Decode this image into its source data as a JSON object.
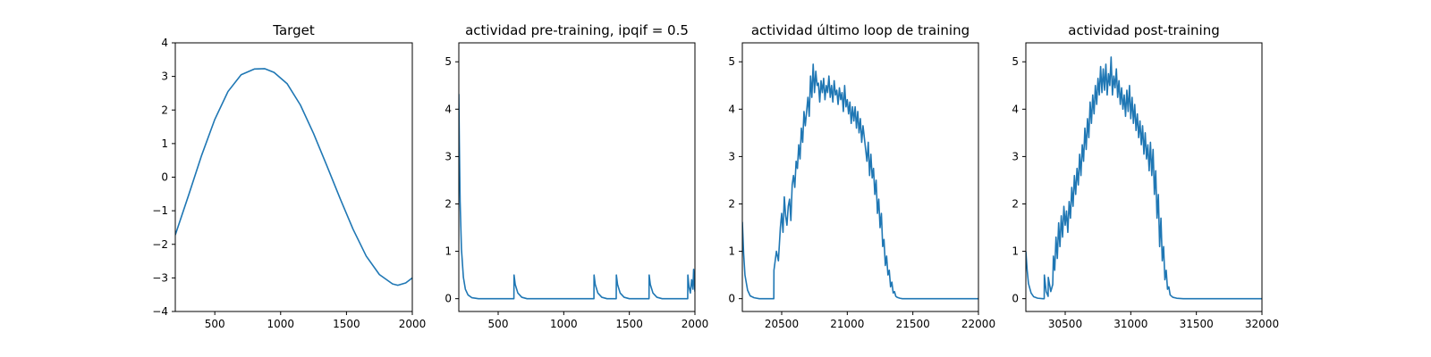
{
  "colors": {
    "series": "#1f77b4",
    "axes": "#000000",
    "background": "#ffffff"
  },
  "chart_data": [
    {
      "type": "line",
      "title": "Target",
      "xlabel": "",
      "ylabel": "",
      "xlim": [
        200,
        2000
      ],
      "ylim": [
        -4,
        4
      ],
      "xticks": [
        500,
        1000,
        1500,
        2000
      ],
      "yticks": [
        -4,
        -3,
        -2,
        -1,
        0,
        1,
        2,
        3,
        4
      ],
      "xtick_labels": [
        "500",
        "1000",
        "1500",
        "2000"
      ],
      "ytick_labels": [
        "−4",
        "−3",
        "−2",
        "−1",
        "0",
        "1",
        "2",
        "3",
        "4"
      ],
      "grid": false,
      "series": [
        {
          "x": [
            200,
            300,
            400,
            500,
            600,
            700,
            800,
            880,
            950,
            1050,
            1150,
            1250,
            1350,
            1450,
            1550,
            1650,
            1750,
            1850,
            1890,
            1950,
            2000
          ],
          "y": [
            -1.72,
            -0.55,
            0.65,
            1.72,
            2.55,
            3.05,
            3.22,
            3.23,
            3.12,
            2.78,
            2.15,
            1.3,
            0.35,
            -0.62,
            -1.55,
            -2.35,
            -2.9,
            -3.18,
            -3.22,
            -3.15,
            -3.0
          ]
        }
      ]
    },
    {
      "type": "line",
      "title": "actividad pre-training, ipqif = 0.5",
      "xlabel": "",
      "ylabel": "",
      "xlim": [
        200,
        2000
      ],
      "ylim": [
        -0.27,
        5.4
      ],
      "xticks": [
        500,
        1000,
        1500,
        2000
      ],
      "yticks": [
        0,
        1,
        2,
        3,
        4,
        5
      ],
      "xtick_labels": [
        "500",
        "1000",
        "1500",
        "2000"
      ],
      "ytick_labels": [
        "0",
        "1",
        "2",
        "3",
        "4",
        "5"
      ],
      "grid": false,
      "series": [
        {
          "x": [
            200,
            204,
            210,
            220,
            235,
            250,
            270,
            300,
            350,
            620,
            621,
            630,
            650,
            680,
            720,
            1230,
            1231,
            1240,
            1260,
            1290,
            1330,
            1400,
            1401,
            1410,
            1430,
            1460,
            1500,
            1650,
            1651,
            1660,
            1680,
            1710,
            1750,
            1945,
            1946,
            1955,
            1965,
            1975,
            1985,
            1990,
            2000
          ],
          "y": [
            4.32,
            3.3,
            2.05,
            1.05,
            0.45,
            0.2,
            0.08,
            0.02,
            0.0,
            0.0,
            0.5,
            0.3,
            0.12,
            0.03,
            0.0,
            0.0,
            0.5,
            0.3,
            0.12,
            0.03,
            0.0,
            0.0,
            0.5,
            0.3,
            0.12,
            0.03,
            0.0,
            0.0,
            0.5,
            0.3,
            0.12,
            0.03,
            0.0,
            0.0,
            0.5,
            0.25,
            0.12,
            0.4,
            0.2,
            0.62,
            0.15
          ]
        }
      ]
    },
    {
      "type": "line",
      "title": "actividad último loop de training",
      "xlabel": "",
      "ylabel": "",
      "xlim": [
        20200,
        22000
      ],
      "ylim": [
        -0.27,
        5.4
      ],
      "xticks": [
        20500,
        21000,
        21500,
        22000
      ],
      "yticks": [
        0,
        1,
        2,
        3,
        4,
        5
      ],
      "xtick_labels": [
        "20500",
        "21000",
        "21500",
        "22000"
      ],
      "ytick_labels": [
        "0",
        "1",
        "2",
        "3",
        "4",
        "5"
      ],
      "grid": false,
      "series": [
        {
          "x": [
            20200,
            20210,
            20220,
            20240,
            20260,
            20290,
            20330,
            20400,
            20440,
            20441,
            20460,
            20475,
            20490,
            20500,
            20510,
            20520,
            20530,
            20540,
            20550,
            20560,
            20570,
            20580,
            20590,
            20600,
            20610,
            20620,
            20630,
            20640,
            20650,
            20660,
            20670,
            20680,
            20690,
            20700,
            20710,
            20720,
            20730,
            20740,
            20750,
            20760,
            20770,
            20780,
            20790,
            20800,
            20810,
            20820,
            20830,
            20840,
            20850,
            20860,
            20870,
            20880,
            20890,
            20900,
            20910,
            20920,
            20930,
            20940,
            20950,
            20960,
            20970,
            20980,
            20990,
            21000,
            21010,
            21020,
            21030,
            21040,
            21050,
            21060,
            21070,
            21080,
            21090,
            21100,
            21110,
            21120,
            21130,
            21140,
            21150,
            21160,
            21170,
            21180,
            21190,
            21200,
            21210,
            21220,
            21230,
            21240,
            21250,
            21260,
            21270,
            21280,
            21290,
            21300,
            21310,
            21320,
            21330,
            21340,
            21350,
            21360,
            21370,
            21380,
            21400,
            21420,
            21450,
            21500,
            21600,
            22000
          ],
          "y": [
            1.62,
            0.95,
            0.5,
            0.18,
            0.06,
            0.02,
            0.0,
            0.0,
            0.0,
            0.6,
            1.0,
            0.8,
            1.5,
            1.8,
            1.4,
            2.15,
            1.75,
            1.55,
            1.95,
            2.1,
            1.65,
            2.4,
            2.6,
            2.35,
            2.9,
            2.75,
            3.25,
            2.95,
            3.6,
            3.3,
            3.95,
            3.65,
            3.95,
            4.25,
            3.85,
            4.7,
            4.25,
            4.95,
            4.35,
            4.8,
            4.5,
            4.55,
            4.15,
            4.6,
            4.35,
            4.65,
            4.2,
            4.5,
            4.35,
            4.7,
            4.25,
            4.5,
            4.15,
            4.6,
            4.3,
            4.4,
            4.1,
            4.45,
            4.2,
            4.35,
            3.95,
            4.5,
            4.05,
            4.2,
            3.9,
            4.15,
            3.7,
            4.05,
            3.75,
            4.05,
            3.6,
            3.95,
            3.5,
            3.8,
            3.3,
            3.65,
            3.4,
            3.15,
            2.9,
            3.3,
            2.6,
            3.05,
            2.55,
            2.75,
            2.2,
            2.5,
            1.8,
            2.1,
            1.5,
            1.8,
            1.1,
            1.25,
            0.7,
            0.9,
            0.5,
            0.6,
            0.25,
            0.35,
            0.12,
            0.15,
            0.05,
            0.03,
            0.01,
            0.0,
            0.0,
            0.0,
            0.0,
            0.0
          ]
        }
      ]
    },
    {
      "type": "line",
      "title": "actividad post-training",
      "xlabel": "",
      "ylabel": "",
      "xlim": [
        30200,
        32000
      ],
      "ylim": [
        -0.27,
        5.4
      ],
      "xticks": [
        30500,
        31000,
        31500,
        32000
      ],
      "yticks": [
        0,
        1,
        2,
        3,
        4,
        5
      ],
      "xtick_labels": [
        "30500",
        "31000",
        "31500",
        "32000"
      ],
      "ytick_labels": [
        "0",
        "1",
        "2",
        "3",
        "4",
        "5"
      ],
      "grid": false,
      "series": [
        {
          "x": [
            30200,
            30210,
            30220,
            30240,
            30260,
            30290,
            30330,
            30340,
            30341,
            30355,
            30370,
            30371,
            30390,
            30405,
            30410,
            30420,
            30430,
            30440,
            30450,
            30460,
            30470,
            30480,
            30490,
            30500,
            30510,
            30520,
            30530,
            30540,
            30550,
            30560,
            30570,
            30580,
            30590,
            30600,
            30610,
            30620,
            30630,
            30640,
            30650,
            30660,
            30670,
            30680,
            30690,
            30700,
            30710,
            30720,
            30730,
            30740,
            30750,
            30760,
            30770,
            30780,
            30790,
            30800,
            30810,
            30820,
            30830,
            30840,
            30850,
            30860,
            30870,
            30880,
            30890,
            30900,
            30910,
            30920,
            30930,
            30940,
            30950,
            30960,
            30970,
            30980,
            30990,
            31000,
            31010,
            31020,
            31030,
            31040,
            31050,
            31060,
            31070,
            31080,
            31090,
            31100,
            31110,
            31120,
            31130,
            31140,
            31150,
            31160,
            31170,
            31180,
            31190,
            31200,
            31210,
            31220,
            31230,
            31240,
            31250,
            31260,
            31270,
            31280,
            31290,
            31300,
            31320,
            31350,
            31400,
            31500,
            32000
          ],
          "y": [
            1.0,
            0.6,
            0.32,
            0.12,
            0.04,
            0.01,
            0.0,
            0.0,
            0.5,
            0.15,
            0.05,
            0.45,
            0.15,
            0.3,
            0.9,
            0.6,
            1.3,
            0.85,
            1.6,
            1.1,
            1.75,
            1.3,
            1.95,
            1.55,
            1.85,
            1.4,
            2.05,
            1.7,
            2.35,
            1.95,
            2.6,
            2.2,
            2.75,
            2.4,
            3.05,
            2.6,
            3.25,
            2.9,
            3.6,
            3.15,
            3.8,
            3.4,
            4.15,
            3.7,
            4.3,
            3.9,
            4.5,
            4.1,
            4.65,
            4.3,
            4.9,
            4.35,
            4.85,
            4.4,
            4.95,
            4.3,
            4.75,
            4.5,
            5.1,
            4.3,
            4.7,
            4.45,
            4.85,
            4.25,
            4.6,
            4.1,
            4.45,
            4.0,
            4.3,
            3.85,
            4.4,
            3.95,
            4.5,
            3.8,
            4.25,
            3.7,
            4.1,
            3.55,
            3.9,
            3.4,
            3.75,
            3.25,
            3.65,
            3.05,
            3.5,
            2.95,
            3.25,
            2.7,
            3.3,
            2.6,
            3.15,
            2.2,
            2.7,
            1.7,
            2.2,
            1.1,
            1.7,
            0.8,
            1.1,
            0.4,
            0.6,
            0.2,
            0.25,
            0.08,
            0.03,
            0.01,
            0.0,
            0.0,
            0.0
          ]
        }
      ]
    }
  ]
}
